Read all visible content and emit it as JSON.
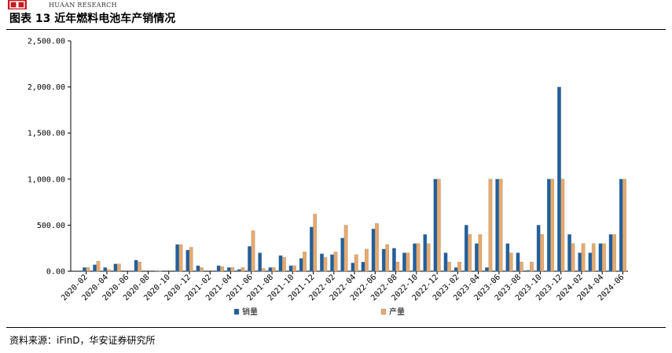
{
  "header": {
    "brand": "HUAAN RESEARCH",
    "title": "图表 13 近年燃料电池车产销情况"
  },
  "footer": {
    "source": "资料来源：iFinD，华安证券研究所"
  },
  "chart_data": {
    "type": "bar",
    "title": "",
    "xlabel": "",
    "ylabel": "",
    "ylim": [
      0,
      2500
    ],
    "yticks": [
      0,
      500,
      1000,
      1500,
      2000,
      2500
    ],
    "ytick_labels": [
      "0.00",
      "500.00",
      "1,000.00",
      "1,500.00",
      "2,000.00",
      "2,500.00"
    ],
    "grid": false,
    "legend": "bottom-center",
    "categories": [
      "2020-01",
      "2020-02",
      "2020-03",
      "2020-04",
      "2020-05",
      "2020-06",
      "2020-07",
      "2020-08",
      "2020-09",
      "2020-10",
      "2020-11",
      "2020-12",
      "2021-01",
      "2021-02",
      "2021-03",
      "2021-04",
      "2021-05",
      "2021-06",
      "2021-07",
      "2021-08",
      "2021-09",
      "2021-10",
      "2021-11",
      "2021-12",
      "2022-01",
      "2022-02",
      "2022-03",
      "2022-04",
      "2022-05",
      "2022-06",
      "2022-07",
      "2022-08",
      "2022-09",
      "2022-10",
      "2022-11",
      "2022-12",
      "2023-01",
      "2023-02",
      "2023-03",
      "2023-04",
      "2023-05",
      "2023-06",
      "2023-07",
      "2023-08",
      "2023-09",
      "2023-10",
      "2023-11",
      "2023-12",
      "2024-01",
      "2024-02",
      "2024-03",
      "2024-04",
      "2024-05",
      "2024-06"
    ],
    "tick_labels": [
      "2020-02",
      "2020-04",
      "2020-06",
      "2020-08",
      "2020-10",
      "2020-12",
      "2021-02",
      "2021-04",
      "2021-06",
      "2021-08",
      "2021-10",
      "2021-12",
      "2022-02",
      "2022-04",
      "2022-06",
      "2022-08",
      "2022-10",
      "2022-12",
      "2023-02",
      "2023-04",
      "2023-06",
      "2023-08",
      "2023-10",
      "2023-12",
      "2024-02",
      "2024-04",
      "2024-06"
    ],
    "series": [
      {
        "name": "销量",
        "color": "#1f5f9e",
        "values": [
          0,
          40,
          70,
          40,
          80,
          0,
          120,
          0,
          5,
          0,
          290,
          230,
          60,
          0,
          60,
          40,
          20,
          270,
          200,
          40,
          170,
          60,
          140,
          480,
          190,
          180,
          360,
          90,
          100,
          460,
          240,
          250,
          200,
          300,
          400,
          1000,
          200,
          40,
          500,
          300,
          40,
          1000,
          300,
          200,
          10,
          500,
          1000,
          2000,
          400,
          200,
          200,
          300,
          400,
          1000
        ]
      },
      {
        "name": "产量",
        "color": "#e8a96a",
        "values": [
          0,
          40,
          110,
          20,
          80,
          0,
          100,
          0,
          5,
          0,
          290,
          260,
          40,
          0,
          50,
          40,
          40,
          440,
          30,
          40,
          150,
          60,
          210,
          620,
          150,
          210,
          500,
          180,
          240,
          520,
          290,
          100,
          200,
          300,
          300,
          1000,
          100,
          100,
          400,
          400,
          1000,
          1000,
          200,
          100,
          100,
          400,
          1000,
          1000,
          300,
          300,
          300,
          300,
          400,
          1000
        ]
      }
    ]
  }
}
